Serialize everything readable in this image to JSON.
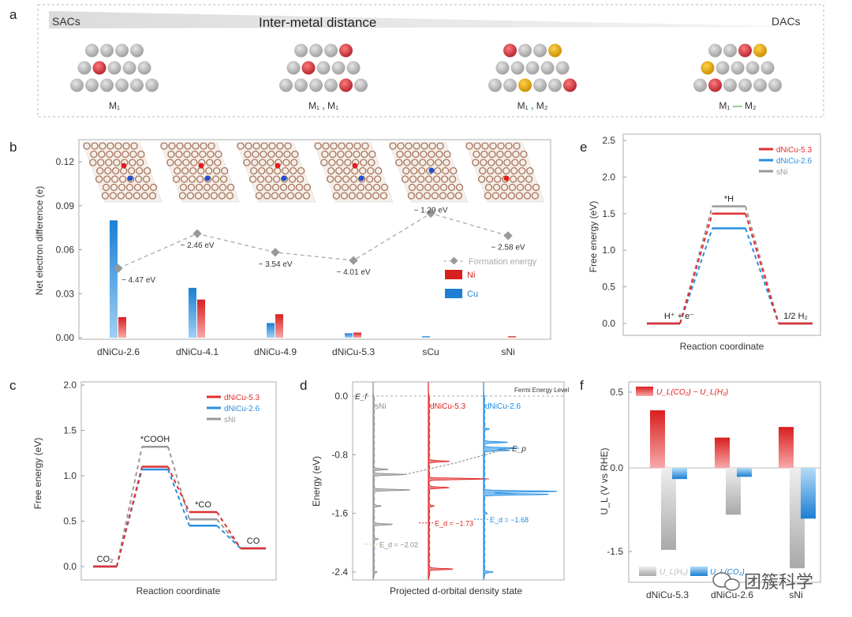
{
  "panel_a": {
    "label": "a",
    "left_label": "SACs",
    "center_label": "Inter-metal distance",
    "right_label": "DACs",
    "colors": {
      "g": "#b9b9b9",
      "r": "#e8484e",
      "y": "#f0b400",
      "sep": "#4caf50"
    },
    "configs": [
      {
        "rows": [
          "gggg",
          "grggg",
          "gggggg"
        ],
        "caption": {
          "a": "M₁",
          "sep": "",
          "b": ""
        }
      },
      {
        "rows": [
          "gggr",
          "grggg",
          "ggggrg"
        ],
        "caption": {
          "a": "M₁",
          "sep": " , ",
          "b": "M₁"
        }
      },
      {
        "rows": [
          "rggy",
          "ggggg",
          "ggyggr"
        ],
        "caption": {
          "a": "M₁",
          "sep": " , ",
          "b": "M₂"
        }
      },
      {
        "rows": [
          "ggry",
          "ygggg",
          "grgggg"
        ],
        "caption": {
          "a": "M₁",
          "sep": " — ",
          "b": "M₂"
        }
      }
    ]
  },
  "chart_data": [
    {
      "panel": "b",
      "type": "bar",
      "ylabel": "Net electron difference  (e)",
      "ylim": [
        0,
        0.13
      ],
      "yticks": [
        "0.00",
        "0.03",
        "0.06",
        "0.09",
        "0.12"
      ],
      "categories": [
        "dNiCu-2.6",
        "dNiCu-4.1",
        "dNiCu-4.9",
        "dNiCu-5.3",
        "sCu",
        "sNi"
      ],
      "series": [
        {
          "name": "Cu",
          "color": "#1f7fd4",
          "values": [
            0.08,
            0.034,
            0.01,
            0.003,
            0.001,
            0.0
          ]
        },
        {
          "name": "Ni",
          "color": "#d91e1e",
          "values": [
            0.014,
            0.026,
            0.016,
            0.0035,
            0.0,
            0.001
          ]
        }
      ],
      "line_series": {
        "name": "Formation energy",
        "color": "#999999",
        "values_eV": [
          -4.47,
          -2.46,
          -3.54,
          -4.01,
          -1.29,
          -2.58
        ],
        "labels": [
          "− 4.47 eV",
          "− 2.46 eV",
          "− 3.54 eV",
          "− 4.01 eV",
          "− 1.29 eV",
          "− 2.58 eV"
        ]
      },
      "legend": "right",
      "insets": [
        {
          "red": true,
          "blue": true
        },
        {
          "red": true,
          "blue": true
        },
        {
          "red": true,
          "blue": true
        },
        {
          "red": true,
          "blue": true
        },
        {
          "red": false,
          "blue": true
        },
        {
          "red": true,
          "blue": false
        }
      ]
    },
    {
      "panel": "c",
      "type": "line",
      "ylabel": "Free energy (eV)",
      "xlabel": "Reaction coordinate",
      "ylim": [
        0,
        2.0
      ],
      "yticks": [
        "0.0",
        "0.5",
        "1.0",
        "1.5",
        "2.0"
      ],
      "states": [
        "CO₂",
        "*COOH",
        "*CO",
        "CO"
      ],
      "series": [
        {
          "name": "dNiCu-5.3",
          "color": "#e03030",
          "values": [
            0,
            1.1,
            0.6,
            0.2
          ]
        },
        {
          "name": "dNiCu-2.6",
          "color": "#2a8fe0",
          "values": [
            0,
            1.07,
            0.45,
            0.2
          ]
        },
        {
          "name": "sNi",
          "color": "#999999",
          "values": [
            0,
            1.32,
            0.52,
            0.2
          ]
        }
      ],
      "legend": "top-right"
    },
    {
      "panel": "d",
      "type": "area",
      "ylabel": "Energy (eV)",
      "xlabel": "Projected d-orbital density state",
      "ylim": [
        -2.5,
        0.1
      ],
      "yticks": [
        "0.0",
        "-0.8",
        "-1.6",
        "-2.4"
      ],
      "fermi_label": "Fermi Energy Level",
      "ef_label": "E_f",
      "ep_label": "E_p",
      "series": [
        {
          "name": "sNi",
          "color": "#8a8a8a",
          "ed": -2.02,
          "ed_label": "E_d = −2.02",
          "ep": -1.07,
          "peaks": [
            [
              -1.07,
              0.55
            ],
            [
              -1.0,
              0.25
            ],
            [
              -1.28,
              0.65
            ],
            [
              -1.5,
              0.12
            ],
            [
              -1.75,
              0.32
            ],
            [
              -1.95,
              0.08
            ],
            [
              -2.4,
              0.05
            ]
          ]
        },
        {
          "name": "dNiCu-5.3",
          "color": "#e02020",
          "ed": -1.73,
          "ed_label": "E_d = −1.73",
          "ep": -0.91,
          "peaks": [
            [
              -0.89,
              0.35
            ],
            [
              -1.13,
              1.05
            ],
            [
              -1.25,
              0.35
            ],
            [
              -1.5,
              0.08
            ],
            [
              -2.36,
              0.42
            ]
          ]
        },
        {
          "name": "dNiCu-2.6",
          "color": "#1a8ae0",
          "ed": -1.68,
          "ed_label": "E_d = −1.68",
          "ep": -0.71,
          "peaks": [
            [
              -0.45,
              0.08
            ],
            [
              -0.63,
              0.4
            ],
            [
              -0.71,
              0.6
            ],
            [
              -0.74,
              0.45
            ],
            [
              -1.3,
              1.3
            ],
            [
              -1.34,
              1.15
            ],
            [
              -1.6,
              0.05
            ],
            [
              -2.4,
              0.15
            ]
          ]
        }
      ]
    },
    {
      "panel": "e",
      "type": "line",
      "ylabel": "Free energy (eV)",
      "xlabel": "Reaction coordinate",
      "ylim": [
        0,
        2.5
      ],
      "yticks": [
        "0.0",
        "0.5",
        "1.0",
        "1.5",
        "2.0",
        "2.5"
      ],
      "states": [
        "H⁺ + e⁻",
        "*H",
        "1/2 H₂"
      ],
      "series": [
        {
          "name": "dNiCu-5.3",
          "color": "#e03030",
          "values": [
            0,
            1.5,
            0
          ]
        },
        {
          "name": "dNiCu-2.6",
          "color": "#2a8fe0",
          "values": [
            0,
            1.3,
            0
          ]
        },
        {
          "name": "sNi",
          "color": "#999999",
          "values": [
            0,
            1.6,
            0
          ]
        }
      ],
      "legend": "top-right"
    },
    {
      "panel": "f",
      "type": "bar",
      "ylabel": "U_L (V vs RHE)",
      "yticks": [
        "0.5",
        "0.0",
        "-1.5"
      ],
      "categories": [
        "dNiCu-5.3",
        "dNiCu-2.6",
        "sNi"
      ],
      "series": [
        {
          "name": "U_L(CO₂) − U_L(H₂)",
          "color": "#e02020",
          "values": [
            0.38,
            0.2,
            0.27
          ]
        },
        {
          "name": "U_L(H₂)",
          "color": "#a8a8a8",
          "values": [
            -1.47,
            -0.84,
            -1.8
          ]
        },
        {
          "name": "U_L(CO₂)",
          "color": "#1a7fd4",
          "values": [
            -0.2,
            -0.16,
            -0.91
          ]
        }
      ]
    }
  ],
  "panel_labels": {
    "b": "b",
    "c": "c",
    "d": "d",
    "e": "e",
    "f": "f"
  },
  "watermark": {
    "text": "团簇科学",
    "icon": "wechat-icon"
  }
}
